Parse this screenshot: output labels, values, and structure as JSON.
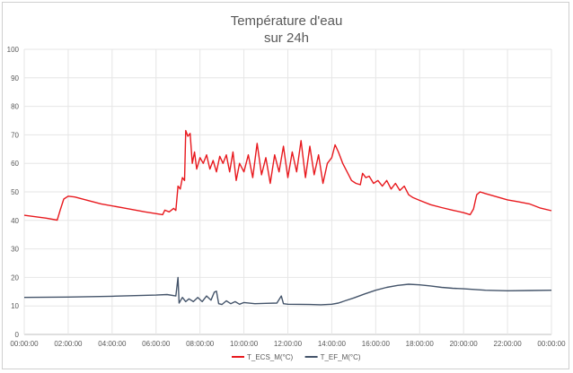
{
  "chart_data": {
    "type": "line",
    "title": "Température d'eau",
    "subtitle": "sur 24h",
    "xlabel": "",
    "ylabel": "",
    "ylim": [
      0,
      100
    ],
    "yticks": [
      0,
      10,
      20,
      30,
      40,
      50,
      60,
      70,
      80,
      90,
      100
    ],
    "xlim": [
      "00:00:00",
      "24:00:00"
    ],
    "xticks": [
      "00:00:00",
      "02:00:00",
      "04:00:00",
      "06:00:00",
      "08:00:00",
      "10:00:00",
      "12:00:00",
      "14:00:00",
      "16:00:00",
      "18:00:00",
      "20:00:00",
      "22:00:00",
      "00:00:00"
    ],
    "grid": true,
    "legend": "bottom",
    "series": [
      {
        "name": "T_ECS_M(°C)",
        "color": "#e8191e",
        "points": [
          [
            0.0,
            41.8
          ],
          [
            0.5,
            41.3
          ],
          [
            1.0,
            40.8
          ],
          [
            1.5,
            40.1
          ],
          [
            1.65,
            44.0
          ],
          [
            1.8,
            47.5
          ],
          [
            2.0,
            48.5
          ],
          [
            2.3,
            48.2
          ],
          [
            2.8,
            47.2
          ],
          [
            3.5,
            45.8
          ],
          [
            4.5,
            44.4
          ],
          [
            5.5,
            43.0
          ],
          [
            6.3,
            42.0
          ],
          [
            6.4,
            43.6
          ],
          [
            6.6,
            43.0
          ],
          [
            6.8,
            44.2
          ],
          [
            6.9,
            43.5
          ],
          [
            7.0,
            52.0
          ],
          [
            7.1,
            51.0
          ],
          [
            7.2,
            55.0
          ],
          [
            7.3,
            54.0
          ],
          [
            7.35,
            71.5
          ],
          [
            7.45,
            69.5
          ],
          [
            7.55,
            70.5
          ],
          [
            7.65,
            60.0
          ],
          [
            7.75,
            64.0
          ],
          [
            7.85,
            58.0
          ],
          [
            8.0,
            62.0
          ],
          [
            8.15,
            60.0
          ],
          [
            8.3,
            63.0
          ],
          [
            8.45,
            58.0
          ],
          [
            8.6,
            61.0
          ],
          [
            8.75,
            57.0
          ],
          [
            8.9,
            62.5
          ],
          [
            9.05,
            60.0
          ],
          [
            9.2,
            63.0
          ],
          [
            9.35,
            57.0
          ],
          [
            9.5,
            64.0
          ],
          [
            9.65,
            54.0
          ],
          [
            9.8,
            60.0
          ],
          [
            10.0,
            57.0
          ],
          [
            10.2,
            63.0
          ],
          [
            10.4,
            55.0
          ],
          [
            10.6,
            67.0
          ],
          [
            10.8,
            56.0
          ],
          [
            11.0,
            62.0
          ],
          [
            11.2,
            53.0
          ],
          [
            11.4,
            63.0
          ],
          [
            11.6,
            57.0
          ],
          [
            11.8,
            66.0
          ],
          [
            12.0,
            55.0
          ],
          [
            12.2,
            64.0
          ],
          [
            12.4,
            57.0
          ],
          [
            12.6,
            68.0
          ],
          [
            12.8,
            55.0
          ],
          [
            13.0,
            66.0
          ],
          [
            13.2,
            56.0
          ],
          [
            13.4,
            63.0
          ],
          [
            13.6,
            53.0
          ],
          [
            13.8,
            60.0
          ],
          [
            14.0,
            62.0
          ],
          [
            14.15,
            66.5
          ],
          [
            14.3,
            64.0
          ],
          [
            14.5,
            60.0
          ],
          [
            14.7,
            57.0
          ],
          [
            14.9,
            54.0
          ],
          [
            15.1,
            53.0
          ],
          [
            15.3,
            52.5
          ],
          [
            15.4,
            56.5
          ],
          [
            15.55,
            55.0
          ],
          [
            15.7,
            55.5
          ],
          [
            15.9,
            53.0
          ],
          [
            16.1,
            54.0
          ],
          [
            16.3,
            52.0
          ],
          [
            16.5,
            54.0
          ],
          [
            16.7,
            51.0
          ],
          [
            16.9,
            53.0
          ],
          [
            17.1,
            50.5
          ],
          [
            17.3,
            52.0
          ],
          [
            17.5,
            49.0
          ],
          [
            17.7,
            48.0
          ],
          [
            18.0,
            47.0
          ],
          [
            18.5,
            45.5
          ],
          [
            19.0,
            44.5
          ],
          [
            19.5,
            43.6
          ],
          [
            20.0,
            42.7
          ],
          [
            20.3,
            42.0
          ],
          [
            20.45,
            44.0
          ],
          [
            20.6,
            49.0
          ],
          [
            20.75,
            50.0
          ],
          [
            21.0,
            49.4
          ],
          [
            21.5,
            48.3
          ],
          [
            22.0,
            47.2
          ],
          [
            22.5,
            46.5
          ],
          [
            23.0,
            45.8
          ],
          [
            23.5,
            44.3
          ],
          [
            24.0,
            43.4
          ]
        ]
      },
      {
        "name": "T_EF_M(°C)",
        "color": "#44546a",
        "points": [
          [
            0.0,
            13.0
          ],
          [
            2.0,
            13.1
          ],
          [
            4.0,
            13.4
          ],
          [
            6.0,
            13.8
          ],
          [
            6.5,
            14.0
          ],
          [
            6.9,
            13.5
          ],
          [
            7.0,
            20.0
          ],
          [
            7.05,
            11.0
          ],
          [
            7.2,
            13.0
          ],
          [
            7.35,
            11.5
          ],
          [
            7.5,
            12.5
          ],
          [
            7.7,
            11.5
          ],
          [
            7.9,
            13.0
          ],
          [
            8.1,
            11.5
          ],
          [
            8.3,
            13.5
          ],
          [
            8.5,
            12.0
          ],
          [
            8.65,
            14.8
          ],
          [
            8.75,
            15.2
          ],
          [
            8.85,
            10.8
          ],
          [
            9.0,
            10.5
          ],
          [
            9.2,
            11.8
          ],
          [
            9.4,
            10.8
          ],
          [
            9.6,
            11.5
          ],
          [
            9.8,
            10.6
          ],
          [
            10.0,
            11.2
          ],
          [
            10.5,
            10.8
          ],
          [
            11.0,
            10.9
          ],
          [
            11.5,
            11.0
          ],
          [
            11.7,
            13.5
          ],
          [
            11.8,
            10.8
          ],
          [
            12.0,
            10.6
          ],
          [
            13.0,
            10.5
          ],
          [
            13.5,
            10.4
          ],
          [
            14.0,
            10.6
          ],
          [
            14.3,
            11.0
          ],
          [
            14.6,
            11.8
          ],
          [
            15.0,
            12.8
          ],
          [
            15.5,
            14.2
          ],
          [
            16.0,
            15.5
          ],
          [
            16.5,
            16.5
          ],
          [
            17.0,
            17.2
          ],
          [
            17.5,
            17.6
          ],
          [
            18.0,
            17.4
          ],
          [
            18.5,
            17.0
          ],
          [
            19.0,
            16.5
          ],
          [
            19.5,
            16.2
          ],
          [
            20.0,
            16.0
          ],
          [
            21.0,
            15.5
          ],
          [
            22.0,
            15.3
          ],
          [
            23.0,
            15.4
          ],
          [
            24.0,
            15.5
          ]
        ]
      }
    ]
  }
}
